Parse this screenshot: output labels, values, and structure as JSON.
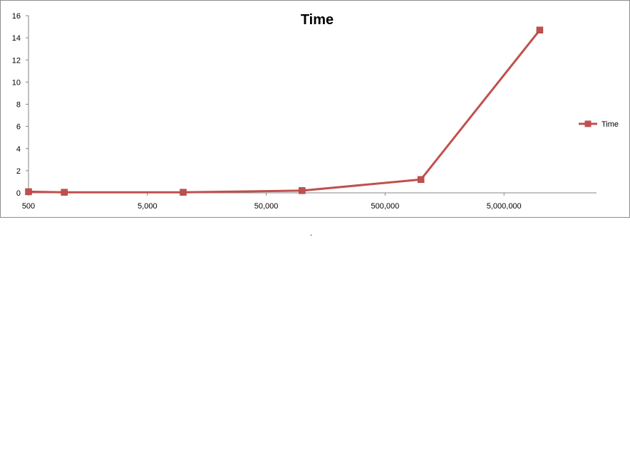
{
  "chart_data": {
    "type": "line",
    "title": "Time",
    "xlabel": "",
    "ylabel": "",
    "x_scale": "log",
    "x": [
      500,
      1000,
      10000,
      100000,
      1000000,
      10000000
    ],
    "series": [
      {
        "name": "Time",
        "color": "#c0504d",
        "marker": "square",
        "values": [
          0.1,
          0.05,
          0.05,
          0.2,
          1.2,
          14.7
        ]
      }
    ],
    "xlim": [
      500,
      30000000
    ],
    "ylim": [
      0,
      16
    ],
    "x_ticks": [
      500,
      5000,
      50000,
      500000,
      5000000
    ],
    "x_tick_labels": [
      "500",
      "5,000",
      "50,000",
      "500,000",
      "5,000,000"
    ],
    "y_ticks": [
      0,
      2,
      4,
      6,
      8,
      10,
      12,
      14,
      16
    ],
    "y_tick_labels": [
      "0",
      "2",
      "4",
      "6",
      "8",
      "10",
      "12",
      "14",
      "16"
    ],
    "grid": false,
    "legend_position": "right"
  },
  "footer_mark": "."
}
